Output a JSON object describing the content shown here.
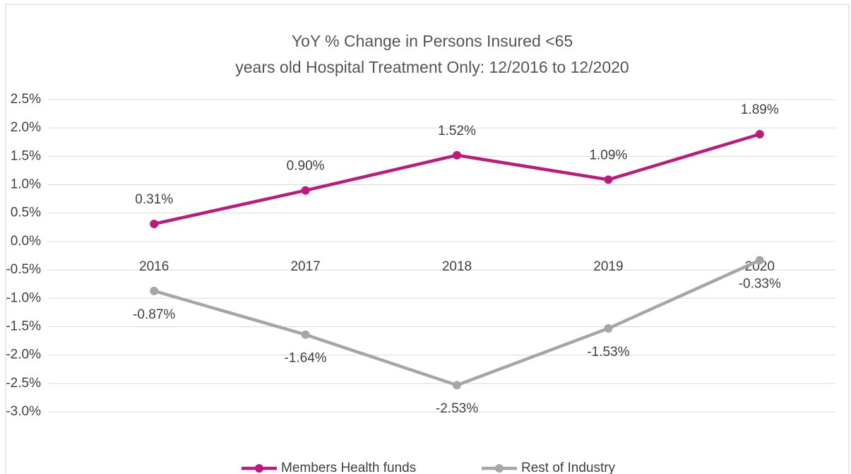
{
  "chart_data": {
    "type": "line",
    "title": [
      "YoY % Change in Persons Insured <65",
      "years old Hospital Treatment Only: 12/2016 to 12/2020"
    ],
    "categories": [
      "2016",
      "2017",
      "2018",
      "2019",
      "2020"
    ],
    "series": [
      {
        "name": "Members Health funds",
        "color": "#bc1a7c",
        "values": [
          0.31,
          0.9,
          1.52,
          1.09,
          1.89
        ],
        "value_labels": [
          "0.31%",
          "0.90%",
          "1.52%",
          "1.09%",
          "1.89%"
        ]
      },
      {
        "name": "Rest of Industry",
        "color": "#a6a6a6",
        "values": [
          -0.87,
          -1.64,
          -2.53,
          -1.53,
          -0.33
        ],
        "value_labels": [
          "-0.87%",
          "-1.64%",
          "-2.53%",
          "-1.53%",
          "-0.33%"
        ]
      }
    ],
    "ylim": [
      -3.0,
      2.5
    ],
    "yticks": [
      {
        "value": 2.5,
        "label": "2.5%"
      },
      {
        "value": 2.0,
        "label": "2.0%"
      },
      {
        "value": 1.5,
        "label": "1.5%"
      },
      {
        "value": 1.0,
        "label": "1.0%"
      },
      {
        "value": 0.5,
        "label": "0.5%"
      },
      {
        "value": 0.0,
        "label": "0.0%"
      },
      {
        "value": -0.5,
        "label": "-0.5%"
      },
      {
        "value": -1.0,
        "label": "-1.0%"
      },
      {
        "value": -1.5,
        "label": "-1.5%"
      },
      {
        "value": -2.0,
        "label": "-2.0%"
      },
      {
        "value": -2.5,
        "label": "-2.5%"
      },
      {
        "value": -3.0,
        "label": "-3.0%"
      }
    ],
    "grid": true,
    "legend": "bottom"
  }
}
